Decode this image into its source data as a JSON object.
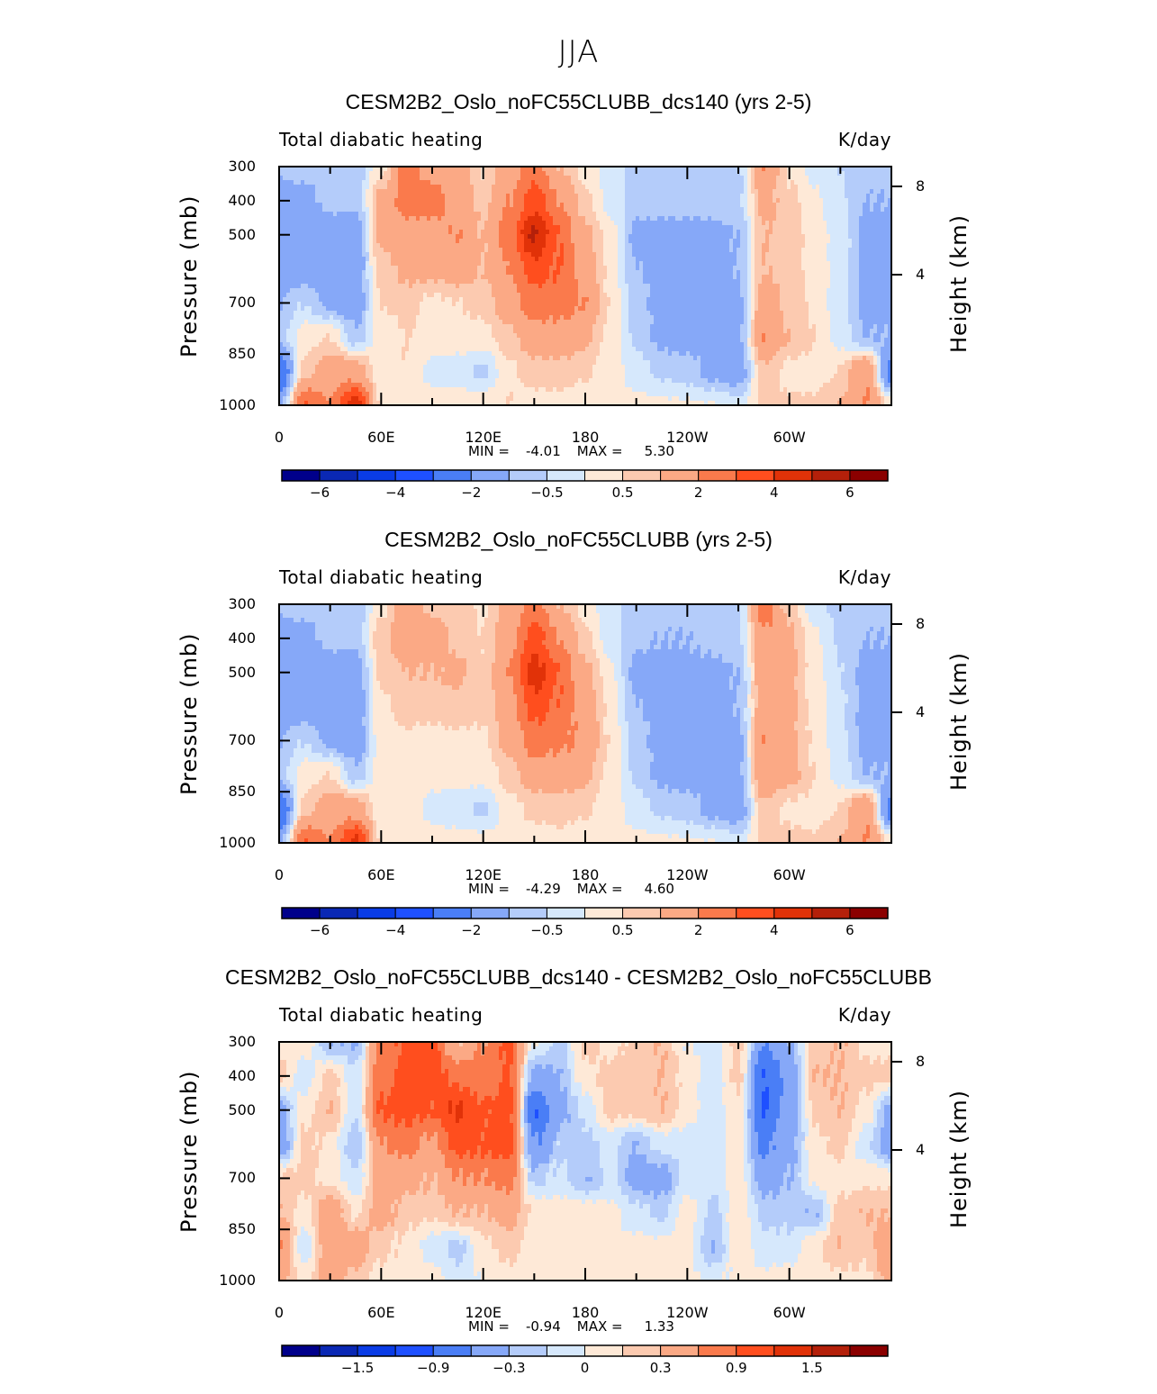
{
  "figure_title": "JJA",
  "colors": [
    "#00008B",
    "#0A28B4",
    "#0A3CE6",
    "#1E50FF",
    "#4A7EF6",
    "#86A8F8",
    "#B4CCFA",
    "#D6E8FC",
    "#FEE9D7",
    "#FCCAB0",
    "#FBA985",
    "#FA7A4C",
    "#FF4E1E",
    "#E13208",
    "#B4200A",
    "#8B0000"
  ],
  "chart_data": [
    {
      "type": "heatmap",
      "title": "CESM2B2_Oslo_noFC55CLUBB_dcs140 (yrs 2-5)",
      "left_label": "Total diabatic heating",
      "right_label": "K/day",
      "ylabel": "Pressure (mb)",
      "ylabel_right": "Height (km)",
      "xtick_labels": [
        "0",
        "60E",
        "120E",
        "180",
        "120W",
        "60W"
      ],
      "ytick_labels": [
        "300",
        "400",
        "500",
        "700",
        "850",
        "1000"
      ],
      "ytick_values": [
        300,
        400,
        500,
        700,
        850,
        1000
      ],
      "height_ticks": [
        "8",
        "4"
      ],
      "xlim": [
        0,
        360
      ],
      "ylim": [
        1000,
        300
      ],
      "min_label": "MIN =",
      "min_value": "-4.01",
      "max_label": "MAX =",
      "max_value": "5.30",
      "levels": [
        -6,
        -5,
        -4,
        -3,
        -2,
        -1,
        -0.5,
        0,
        0.5,
        1,
        2,
        3,
        4,
        5,
        6
      ],
      "colorbar_labels": [
        "−6",
        "−4",
        "−2",
        "−0.5",
        "0.5",
        "2",
        "4",
        "6"
      ],
      "colorbar_label_levels": [
        1,
        3,
        5,
        7,
        9,
        11,
        13,
        15
      ],
      "lon": [
        0,
        15,
        30,
        45,
        60,
        75,
        90,
        105,
        120,
        135,
        150,
        165,
        180,
        195,
        210,
        225,
        240,
        255,
        270,
        285,
        300,
        315,
        330,
        345,
        360
      ],
      "pressure": [
        300,
        400,
        500,
        600,
        700,
        800,
        900,
        1000
      ],
      "values_by_lon": [
        [
          -0.8,
          -1.5,
          -1.5,
          -1.5,
          -1,
          -0.7,
          -3,
          -1.5
        ],
        [
          -0.8,
          -1.2,
          -1.5,
          -1.5,
          -0.5,
          0.3,
          0.7,
          3
        ],
        [
          -0.8,
          -0.8,
          -1.5,
          -1.5,
          -1.2,
          0.5,
          1.5,
          2
        ],
        [
          -0.8,
          -0.8,
          -1.5,
          -1.5,
          -1.5,
          -0.8,
          1.5,
          4.5
        ],
        [
          0.3,
          1.2,
          1.2,
          0.7,
          0.5,
          0.2,
          0.1,
          0.3
        ],
        [
          2.5,
          2.5,
          1.5,
          1.2,
          0.7,
          0.5,
          0.5,
          0.3
        ],
        [
          1.5,
          2.5,
          1.5,
          1.2,
          0.4,
          0.3,
          -0.2,
          0.3
        ],
        [
          1.5,
          1.5,
          2,
          1.5,
          0.5,
          0.3,
          -0.3,
          0.3
        ],
        [
          0.5,
          0.8,
          1,
          1,
          0.7,
          0.3,
          -0.6,
          0.3
        ],
        [
          1.5,
          2,
          2.5,
          2,
          1.5,
          0.8,
          0.4,
          0.5
        ],
        [
          2.5,
          3.5,
          5.2,
          3.5,
          2.5,
          1.5,
          0.7,
          0.3
        ],
        [
          1,
          2,
          3,
          3,
          2.5,
          1.5,
          0.8,
          0.3
        ],
        [
          0.3,
          0.6,
          1.2,
          1.5,
          2,
          1.2,
          0.6,
          0.2
        ],
        [
          -0.3,
          -0.2,
          0.2,
          0.3,
          0.4,
          0.3,
          0.3,
          0.2
        ],
        [
          -0.6,
          -0.7,
          -1.2,
          -1,
          -0.8,
          -0.6,
          -0.3,
          0.2
        ],
        [
          -0.6,
          -0.8,
          -1.2,
          -1.2,
          -1.2,
          -1.2,
          -0.6,
          0.1
        ],
        [
          -0.8,
          -0.8,
          -1.2,
          -1.2,
          -1.2,
          -1.2,
          -0.8,
          0.1
        ],
        [
          -0.6,
          -0.7,
          -1.2,
          -1.2,
          -1.2,
          -1.2,
          -1.2,
          0
        ],
        [
          -0.6,
          -0.6,
          -1,
          -1,
          -1.2,
          -1.2,
          -1.5,
          -0.3
        ],
        [
          2,
          1.2,
          1,
          1,
          1.5,
          2,
          0.8,
          0.6
        ],
        [
          0.4,
          0.7,
          0.8,
          0.8,
          0.8,
          1,
          0.3,
          0.6
        ],
        [
          -0.2,
          0.1,
          0.2,
          0.3,
          0.4,
          0.5,
          0.3,
          0.6
        ],
        [
          -0.5,
          -0.4,
          -0.2,
          -0.2,
          -0.4,
          -0.2,
          0.5,
          1
        ],
        [
          -0.8,
          -1,
          -1.2,
          -1.2,
          -1.2,
          -1,
          2,
          2
        ],
        [
          -0.8,
          -1,
          -1.2,
          -1.2,
          -1.2,
          -1,
          -2.5,
          0.3
        ]
      ]
    },
    {
      "type": "heatmap",
      "title": "CESM2B2_Oslo_noFC55CLUBB (yrs 2-5)",
      "left_label": "Total diabatic heating",
      "right_label": "K/day",
      "ylabel": "Pressure (mb)",
      "ylabel_right": "Height (km)",
      "xtick_labels": [
        "0",
        "60E",
        "120E",
        "180",
        "120W",
        "60W"
      ],
      "ytick_labels": [
        "300",
        "400",
        "500",
        "700",
        "850",
        "1000"
      ],
      "ytick_values": [
        300,
        400,
        500,
        700,
        850,
        1000
      ],
      "height_ticks": [
        "8",
        "4"
      ],
      "xlim": [
        0,
        360
      ],
      "ylim": [
        1000,
        300
      ],
      "min_label": "MIN =",
      "min_value": "-4.29",
      "max_label": "MAX =",
      "max_value": "4.60",
      "levels": [
        -6,
        -5,
        -4,
        -3,
        -2,
        -1,
        -0.5,
        0,
        0.5,
        1,
        2,
        3,
        4,
        5,
        6
      ],
      "colorbar_labels": [
        "−6",
        "−4",
        "−2",
        "−0.5",
        "0.5",
        "2",
        "4",
        "6"
      ],
      "colorbar_label_levels": [
        1,
        3,
        5,
        7,
        9,
        11,
        13,
        15
      ],
      "lon": [
        0,
        15,
        30,
        45,
        60,
        75,
        90,
        105,
        120,
        135,
        150,
        165,
        180,
        195,
        210,
        225,
        240,
        255,
        270,
        285,
        300,
        315,
        330,
        345,
        360
      ],
      "pressure": [
        300,
        400,
        500,
        600,
        700,
        800,
        900,
        1000
      ],
      "values_by_lon": [
        [
          -0.8,
          -1.5,
          -1.5,
          -1.5,
          -1,
          -0.7,
          -3,
          -1.5
        ],
        [
          -0.8,
          -1.2,
          -1.5,
          -1.5,
          -0.5,
          0.3,
          0.7,
          3
        ],
        [
          -0.8,
          -0.8,
          -1.5,
          -1.5,
          -1.2,
          0.5,
          1.5,
          2
        ],
        [
          -0.8,
          -0.8,
          -1.5,
          -1.5,
          -1.5,
          -0.8,
          1.5,
          4.3
        ],
        [
          0.3,
          0.8,
          0.6,
          0.4,
          0.3,
          0.2,
          0.1,
          0.3
        ],
        [
          1.5,
          1.5,
          1,
          0.7,
          0.4,
          0.3,
          0.3,
          0.3
        ],
        [
          0.8,
          1.5,
          1,
          0.7,
          0.3,
          0.2,
          -0.2,
          0.3
        ],
        [
          0.8,
          0.8,
          1.2,
          0.8,
          0.4,
          0.2,
          -0.3,
          0.2
        ],
        [
          0.4,
          0.5,
          0.6,
          0.6,
          0.4,
          0.2,
          -0.6,
          0.2
        ],
        [
          1.2,
          1.5,
          2,
          1.5,
          1.2,
          0.7,
          0.3,
          0.3
        ],
        [
          2.5,
          3.5,
          4.5,
          3.5,
          2.5,
          1.5,
          0.6,
          0.3
        ],
        [
          1,
          2,
          3,
          2.8,
          2.2,
          1.4,
          0.7,
          0.3
        ],
        [
          0.3,
          0.6,
          1.2,
          1.5,
          1.8,
          1.2,
          0.6,
          0.2
        ],
        [
          -0.4,
          -0.3,
          0.1,
          0.3,
          0.4,
          0.3,
          0.3,
          0.2
        ],
        [
          -0.8,
          -0.9,
          -1.2,
          -1,
          -0.8,
          -0.6,
          -0.3,
          0.2
        ],
        [
          -0.8,
          -1,
          -1.2,
          -1.2,
          -1.2,
          -1.2,
          -0.6,
          0.1
        ],
        [
          -0.8,
          -1,
          -1.2,
          -1.2,
          -1.2,
          -1.2,
          -0.8,
          0.1
        ],
        [
          -0.7,
          -0.8,
          -1.2,
          -1.2,
          -1.2,
          -1.2,
          -1.2,
          0
        ],
        [
          -0.6,
          -0.6,
          -1,
          -1,
          -1.2,
          -1.2,
          -1.5,
          -0.3
        ],
        [
          2.5,
          1.8,
          1.5,
          1.5,
          2,
          1.8,
          0.8,
          0.6
        ],
        [
          0.7,
          1.2,
          1.2,
          1.2,
          1.2,
          1.2,
          0.4,
          0.6
        ],
        [
          -0.3,
          0.1,
          0.2,
          0.3,
          0.4,
          0.5,
          0.3,
          0.6
        ],
        [
          -0.7,
          -0.6,
          -0.5,
          -0.4,
          -0.4,
          -0.2,
          0.5,
          1
        ],
        [
          -0.8,
          -1,
          -1.2,
          -1.2,
          -1.2,
          -1,
          2,
          2
        ],
        [
          -0.8,
          -1,
          -1.2,
          -1.2,
          -1.2,
          -1,
          -2.5,
          0.3
        ]
      ]
    },
    {
      "type": "heatmap",
      "title": "CESM2B2_Oslo_noFC55CLUBB_dcs140 - CESM2B2_Oslo_noFC55CLUBB",
      "left_label": "Total diabatic heating",
      "right_label": "K/day",
      "ylabel": "Pressure (mb)",
      "ylabel_right": "Height (km)",
      "xtick_labels": [
        "0",
        "60E",
        "120E",
        "180",
        "120W",
        "60W"
      ],
      "ytick_labels": [
        "300",
        "400",
        "500",
        "700",
        "850",
        "1000"
      ],
      "ytick_values": [
        300,
        400,
        500,
        700,
        850,
        1000
      ],
      "height_ticks": [
        "8",
        "4"
      ],
      "xlim": [
        0,
        360
      ],
      "ylim": [
        1000,
        300
      ],
      "min_label": "MIN =",
      "min_value": "-0.94",
      "max_label": "MAX =",
      "max_value": "1.33",
      "levels": [
        -1.8,
        -1.5,
        -1.2,
        -0.9,
        -0.6,
        -0.3,
        -0.15,
        0,
        0.15,
        0.3,
        0.6,
        0.9,
        1.2,
        1.5,
        1.8
      ],
      "colorbar_labels": [
        "−1.5",
        "−0.9",
        "−0.3",
        "0",
        "0.3",
        "0.9",
        "1.5"
      ],
      "colorbar_label_levels": [
        2,
        4,
        6,
        8,
        10,
        12,
        14
      ],
      "lon": [
        0,
        15,
        30,
        45,
        60,
        75,
        90,
        105,
        120,
        135,
        150,
        165,
        180,
        195,
        210,
        225,
        240,
        255,
        270,
        285,
        300,
        315,
        330,
        345,
        360
      ],
      "pressure": [
        300,
        400,
        500,
        600,
        700,
        800,
        900,
        1000
      ],
      "values_by_lon": [
        [
          0.1,
          0.2,
          -0.4,
          -0.5,
          0.2,
          0.3,
          0.6,
          0.4
        ],
        [
          0.1,
          -0.1,
          0.1,
          0.2,
          0.2,
          0.1,
          -0.1,
          0.1
        ],
        [
          -0.3,
          0.2,
          0.3,
          0.1,
          0.1,
          0.5,
          0.5,
          0.4
        ],
        [
          -0.3,
          -0.1,
          -0.1,
          -0.3,
          -0.1,
          0.1,
          0.5,
          0.2
        ],
        [
          0.7,
          0.8,
          0.95,
          0.6,
          0.4,
          0.4,
          0.2,
          0.1
        ],
        [
          0.95,
          1.0,
          1.0,
          0.7,
          0.4,
          0.2,
          0.1,
          0.1
        ],
        [
          1.0,
          1.0,
          0.95,
          0.5,
          0.3,
          0.2,
          -0.1,
          0.1
        ],
        [
          0.3,
          0.8,
          1.25,
          1.0,
          0.6,
          0.3,
          -0.2,
          -0.1
        ],
        [
          0.6,
          0.7,
          0.95,
          0.95,
          0.6,
          0.3,
          0.1,
          0
        ],
        [
          0.95,
          0.95,
          1.0,
          1.0,
          0.7,
          0.4,
          0.2,
          0.1
        ],
        [
          0,
          -0.4,
          -0.9,
          -0.6,
          -0.2,
          0.1,
          0.1,
          0.1
        ],
        [
          -0.2,
          -0.3,
          -0.4,
          -0.2,
          -0.1,
          0.1,
          0.1,
          0.1
        ],
        [
          0.2,
          0.1,
          -0.1,
          -0.2,
          -0.3,
          0.1,
          0.1,
          0.05
        ],
        [
          0.1,
          0.2,
          0.2,
          -0.1,
          -0.1,
          0.05,
          0.05,
          0.05
        ],
        [
          0.2,
          0.2,
          0.2,
          -0.3,
          -0.4,
          -0.1,
          0.05,
          0.05
        ],
        [
          0.3,
          0.3,
          0.3,
          -0.1,
          -0.4,
          -0.2,
          0.05,
          0.05
        ],
        [
          0,
          0.1,
          0.05,
          -0.1,
          -0.1,
          0.1,
          0.05,
          0.05
        ],
        [
          -0.05,
          -0.1,
          -0.1,
          -0.1,
          -0.1,
          -0.2,
          -0.3,
          -0.05
        ],
        [
          0.2,
          0.2,
          0.1,
          0.1,
          0.1,
          0.1,
          0.1,
          0.05
        ],
        [
          -0.6,
          -0.9,
          -0.94,
          -0.7,
          -0.4,
          -0.2,
          -0.1,
          0.05
        ],
        [
          -0.3,
          -0.5,
          -0.5,
          -0.4,
          -0.3,
          -0.2,
          -0.1,
          0.1
        ],
        [
          0.2,
          0.3,
          0.2,
          0.1,
          0.05,
          -0.3,
          0.1,
          0.1
        ],
        [
          0.3,
          0.3,
          0.3,
          0.2,
          0.1,
          0.2,
          0.3,
          0.1
        ],
        [
          0.1,
          0.2,
          0.1,
          -0.1,
          0.1,
          0.3,
          0.2,
          0.1
        ],
        [
          0.1,
          0.2,
          -0.4,
          -0.5,
          0.1,
          0.3,
          0.5,
          0.4
        ]
      ]
    }
  ]
}
